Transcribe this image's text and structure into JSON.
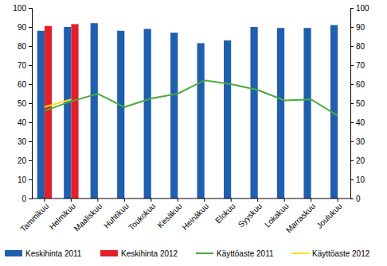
{
  "chart_data": {
    "type": "bar",
    "categories": [
      "Tammikuu",
      "Helmikuu",
      "Maaliskuu",
      "Huhtikuu",
      "Toukokuu",
      "Kesäkuu",
      "Heinäkuu",
      "Elokuu",
      "Syyskuu",
      "Lokakuu",
      "Marraskuu",
      "Joulukuu"
    ],
    "series": [
      {
        "name": "Keskihinta 2011",
        "type": "bar",
        "color": "#1f5fae",
        "values": [
          88,
          90,
          92,
          88,
          89,
          87,
          81.5,
          83,
          90,
          89.5,
          89.5,
          91
        ]
      },
      {
        "name": "Keskihinta 2012",
        "type": "bar",
        "color": "#e3202a",
        "values": [
          90.5,
          91.5,
          null,
          null,
          null,
          null,
          null,
          null,
          null,
          null,
          null,
          null
        ]
      },
      {
        "name": "Käyttöaste 2011",
        "type": "line",
        "axis": "y2",
        "color": "#4aaa3c",
        "values": [
          46,
          51,
          55,
          48,
          52.5,
          55,
          62,
          60,
          57,
          51.5,
          52,
          43.5
        ]
      },
      {
        "name": "Käyttöaste 2012",
        "type": "line",
        "axis": "y2",
        "color": "#f0e020",
        "values": [
          48,
          52,
          null,
          null,
          null,
          null,
          null,
          null,
          null,
          null,
          null,
          null
        ]
      }
    ],
    "ylim": [
      0,
      100
    ],
    "yticks": [
      0,
      10,
      20,
      30,
      40,
      50,
      60,
      70,
      80,
      90,
      100
    ],
    "y2lim": [
      0,
      100
    ],
    "y2ticks": [
      0,
      10,
      20,
      30,
      40,
      50,
      60,
      70,
      80,
      90,
      100
    ],
    "grid": false,
    "legend": "bottom"
  }
}
